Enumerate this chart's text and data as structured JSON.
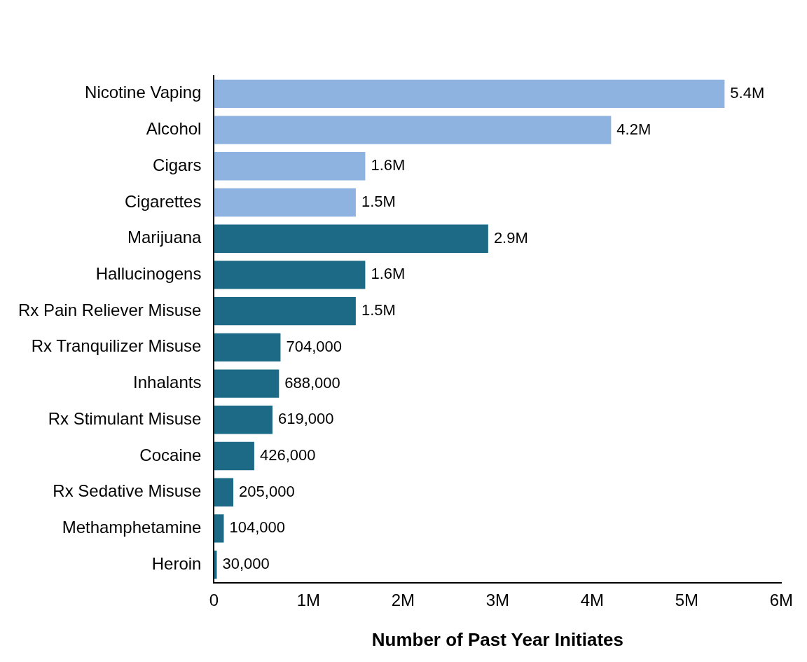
{
  "chart_data": {
    "type": "bar",
    "orientation": "horizontal",
    "xlabel": "Number of Past Year Initiates",
    "categories": [
      "Nicotine Vaping",
      "Alcohol",
      "Cigars",
      "Cigarettes",
      "Marijuana",
      "Hallucinogens",
      "Rx Pain Reliever Misuse",
      "Rx Tranquilizer Misuse",
      "Inhalants",
      "Rx Stimulant Misuse",
      "Cocaine",
      "Rx Sedative Misuse",
      "Methamphetamine",
      "Heroin"
    ],
    "values": [
      5400000,
      4200000,
      1600000,
      1500000,
      2900000,
      1600000,
      1500000,
      704000,
      688000,
      619000,
      426000,
      205000,
      104000,
      30000
    ],
    "value_labels": [
      "5.4M",
      "4.2M",
      "1.6M",
      "1.5M",
      "2.9M",
      "1.6M",
      "1.5M",
      "704,000",
      "688,000",
      "619,000",
      "426,000",
      "205,000",
      "104,000",
      "30,000"
    ],
    "colors": [
      "#8fb3e0",
      "#8fb3e0",
      "#8fb3e0",
      "#8fb3e0",
      "#1c6a86",
      "#1c6a86",
      "#1c6a86",
      "#1c6a86",
      "#1c6a86",
      "#1c6a86",
      "#1c6a86",
      "#1c6a86",
      "#1c6a86",
      "#1c6a86"
    ],
    "xlim": [
      0,
      6000000
    ],
    "xticks": [
      {
        "value": 0,
        "label": "0"
      },
      {
        "value": 1000000,
        "label": "1M"
      },
      {
        "value": 2000000,
        "label": "2M"
      },
      {
        "value": 3000000,
        "label": "3M"
      },
      {
        "value": 4000000,
        "label": "4M"
      },
      {
        "value": 5000000,
        "label": "5M"
      },
      {
        "value": 6000000,
        "label": "6M"
      }
    ],
    "grid": false,
    "legend": false
  }
}
